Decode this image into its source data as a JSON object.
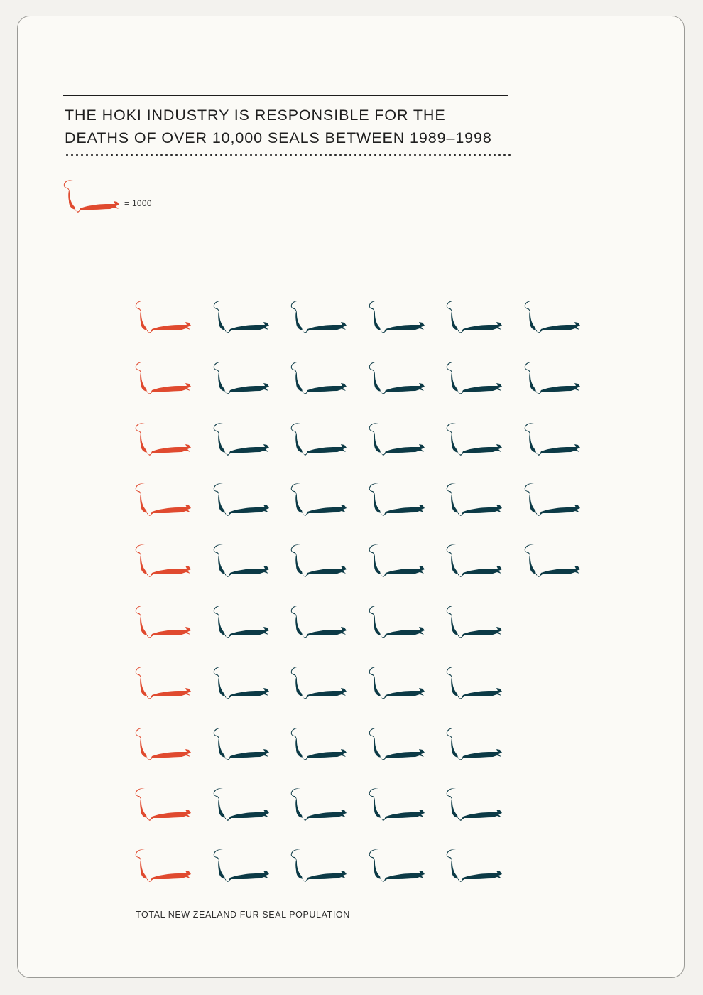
{
  "title_lines": [
    "THE HOKI INDUSTRY IS RESPONSIBLE FOR THE",
    "DEATHS OF OVER 10,000 SEALS BETWEEN 1989–1998"
  ],
  "legend": {
    "icon": "seal-icon",
    "label": "= 1000",
    "color": "#e04a2f"
  },
  "footer_label": "TOTAL NEW ZEALAND FUR SEAL POPULATION",
  "colors": {
    "killed": "#e04a2f",
    "population": "#0c3a46"
  },
  "chart_data": {
    "type": "pictograph",
    "unit_value": 1000,
    "unit_icon": "seal-icon",
    "columns": [
      {
        "count": 10,
        "color": "#e04a2f"
      },
      {
        "count": 10,
        "color": "#0c3a46"
      },
      {
        "count": 10,
        "color": "#0c3a46"
      },
      {
        "count": 10,
        "color": "#0c3a46"
      },
      {
        "count": 10,
        "color": "#0c3a46"
      },
      {
        "count": 5,
        "color": "#0c3a46"
      }
    ],
    "title": "THE HOKI INDUSTRY IS RESPONSIBLE FOR THE DEATHS OF OVER 10,000 SEALS BETWEEN 1989–1998",
    "xlabel": "TOTAL NEW ZEALAND FUR SEAL POPULATION"
  }
}
